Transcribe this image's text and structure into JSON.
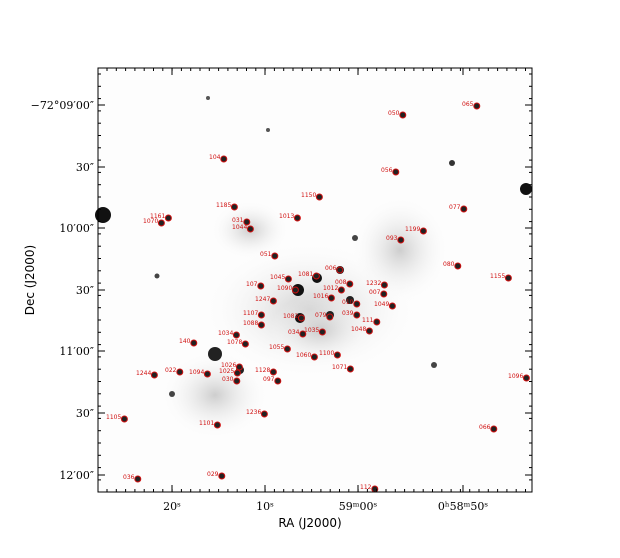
{
  "axes": {
    "x_label": "RA (J2000)",
    "y_label": "Dec (J2000)",
    "x_ticks": [
      "20ˢ",
      "10ˢ",
      "59ᵐ00ˢ",
      "0ʰ58ᵐ50ˢ"
    ],
    "y_ticks": [
      "−72°09′00″",
      "30″",
      "10′00″",
      "30″",
      "11′00″",
      "30″",
      "12′00″"
    ]
  },
  "stars": [
    "050",
    "065",
    "104",
    "056",
    "1150",
    "1185",
    "077",
    "1161",
    "1013",
    "1070",
    "031",
    "1044",
    "1199",
    "093",
    "051",
    "080",
    "006",
    "1155",
    "1045",
    "1081",
    "1232",
    "107",
    "008",
    "1090",
    "1012",
    "007",
    "1016",
    "1247",
    "010",
    "1049",
    "1107",
    "1082",
    "039",
    "079",
    "111",
    "1088",
    "034",
    "1035",
    "1048",
    "1034",
    "1078",
    "140",
    "1055",
    "1060",
    "1100",
    "1026",
    "1071",
    "022",
    "1094",
    "1025",
    "030",
    "1244",
    "1128",
    "097",
    "1096",
    "1236",
    "1105",
    "1101",
    "066",
    "029",
    "036",
    "112"
  ]
}
